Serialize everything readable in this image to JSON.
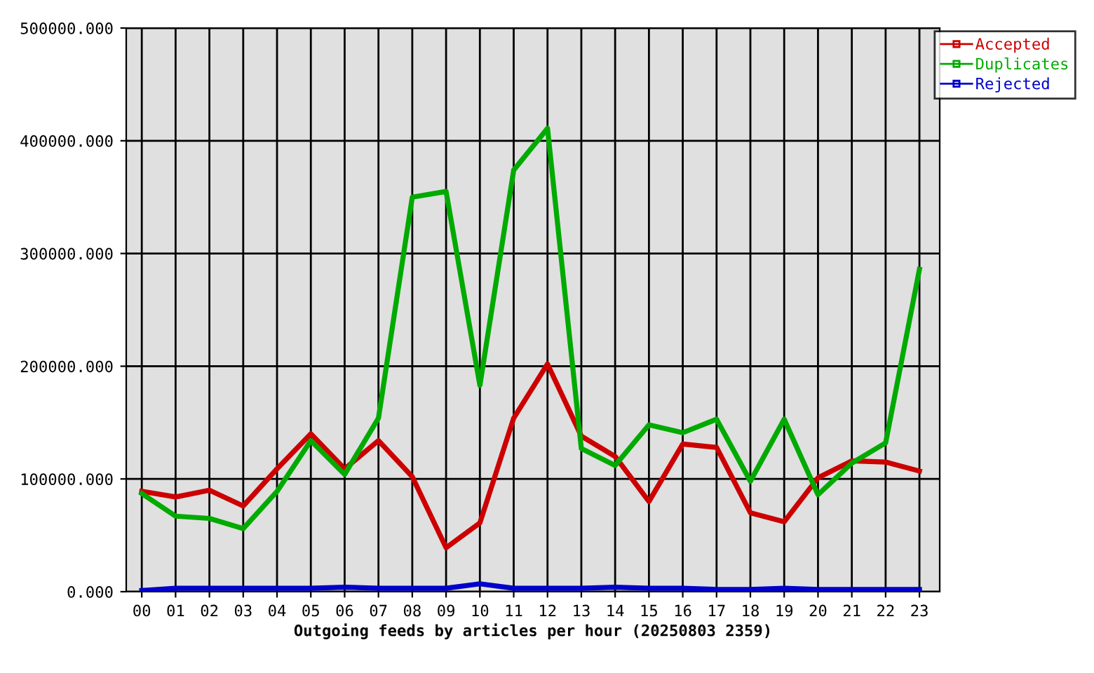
{
  "chart_data": {
    "type": "line",
    "xlabel": "Outgoing feeds by articles per hour (20250803 2359)",
    "categories": [
      "00",
      "01",
      "02",
      "03",
      "04",
      "05",
      "06",
      "07",
      "08",
      "09",
      "10",
      "11",
      "12",
      "13",
      "14",
      "15",
      "16",
      "17",
      "18",
      "19",
      "20",
      "21",
      "22",
      "23"
    ],
    "series": [
      {
        "name": "Accepted",
        "color": "#cc0000",
        "values": [
          89000,
          84000,
          90000,
          76000,
          109000,
          140000,
          109000,
          134000,
          102000,
          39000,
          61000,
          154000,
          202000,
          138000,
          120000,
          80000,
          131000,
          128000,
          70000,
          62000,
          101000,
          116000,
          115000,
          107000
        ]
      },
      {
        "name": "Duplicates",
        "color": "#00aa00",
        "values": [
          87000,
          67000,
          65000,
          56000,
          89000,
          134000,
          104000,
          154000,
          350000,
          355000,
          183000,
          374000,
          411000,
          127000,
          112000,
          148000,
          141000,
          153000,
          98000,
          153000,
          86000,
          114000,
          132000,
          286000
        ]
      },
      {
        "name": "Rejected",
        "color": "#0000cc",
        "values": [
          1000,
          3000,
          3000,
          3000,
          3000,
          3000,
          4000,
          3000,
          3000,
          3000,
          7000,
          3000,
          3000,
          3000,
          4000,
          3000,
          3000,
          2000,
          2000,
          3000,
          2000,
          2000,
          2000,
          2000
        ]
      }
    ],
    "ylim": [
      0,
      500000
    ],
    "yticks": [
      {
        "value": 0,
        "label": "0.000"
      },
      {
        "value": 100000,
        "label": "100000.000"
      },
      {
        "value": 200000,
        "label": "200000.000"
      },
      {
        "value": 300000,
        "label": "300000.000"
      },
      {
        "value": 400000,
        "label": "400000.000"
      },
      {
        "value": 500000,
        "label": "500000.000"
      }
    ],
    "grid": true,
    "legend": "top right",
    "marker": "none",
    "line_style": "solid"
  }
}
